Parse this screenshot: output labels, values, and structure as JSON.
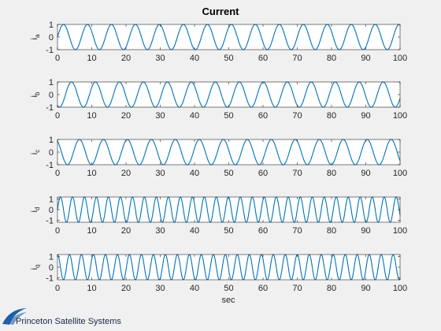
{
  "figure": {
    "title": "Current",
    "xlabel": "sec",
    "logo_text": "Princeton Satellite Systems"
  },
  "colors": {
    "line": "#0072bd",
    "axes": "#262626",
    "background": "#f0f0f0",
    "plot_bg": "#ffffff",
    "logo": "#1d5fa8"
  },
  "chart_data": [
    {
      "type": "line",
      "ylabel_main": "i",
      "ylabel_sub": "a",
      "xlim": [
        0,
        100
      ],
      "ylim": [
        -1,
        1
      ],
      "xticks": [
        "0",
        "10",
        "20",
        "30",
        "40",
        "50",
        "60",
        "70",
        "80",
        "90",
        "100"
      ],
      "yticks": [
        "-1",
        "0",
        "1"
      ],
      "series": [
        {
          "function": "sin",
          "amplitude": 1,
          "period": 7,
          "phase_deg": 0
        }
      ]
    },
    {
      "type": "line",
      "ylabel_main": "i",
      "ylabel_sub": "b",
      "xlim": [
        0,
        100
      ],
      "ylim": [
        -1,
        1
      ],
      "xticks": [
        "0",
        "10",
        "20",
        "30",
        "40",
        "50",
        "60",
        "70",
        "80",
        "90",
        "100"
      ],
      "yticks": [
        "-1",
        "0",
        "1"
      ],
      "series": [
        {
          "function": "sin",
          "amplitude": 1,
          "period": 7,
          "phase_deg": -120
        }
      ]
    },
    {
      "type": "line",
      "ylabel_main": "i",
      "ylabel_sub": "c",
      "xlim": [
        0,
        100
      ],
      "ylim": [
        -1,
        1
      ],
      "xticks": [
        "0",
        "10",
        "20",
        "30",
        "40",
        "50",
        "60",
        "70",
        "80",
        "90",
        "100"
      ],
      "yticks": [
        "-1",
        "0",
        "1"
      ],
      "series": [
        {
          "function": "sin",
          "amplitude": 1,
          "period": 7,
          "phase_deg": 120
        }
      ]
    },
    {
      "type": "line",
      "ylabel_main": "i",
      "ylabel_sub": "d",
      "xlim": [
        0,
        100
      ],
      "ylim": [
        -1.2,
        1.2
      ],
      "xticks": [
        "0",
        "10",
        "20",
        "30",
        "40",
        "50",
        "60",
        "70",
        "80",
        "90",
        "100"
      ],
      "yticks": [
        "-1",
        "0",
        "1"
      ],
      "series": [
        {
          "function": "sin",
          "amplitude": 1.2,
          "period": 3.5,
          "phase_deg": 0
        }
      ]
    },
    {
      "type": "line",
      "ylabel_main": "i",
      "ylabel_sub": "q",
      "xlim": [
        0,
        100
      ],
      "ylim": [
        -1.2,
        1.2
      ],
      "xticks": [
        "0",
        "10",
        "20",
        "30",
        "40",
        "50",
        "60",
        "70",
        "80",
        "90",
        "100"
      ],
      "yticks": [
        "-1",
        "0",
        "1"
      ],
      "series": [
        {
          "function": "sin",
          "amplitude": 1.2,
          "period": 3.5,
          "phase_deg": 90
        }
      ]
    }
  ]
}
